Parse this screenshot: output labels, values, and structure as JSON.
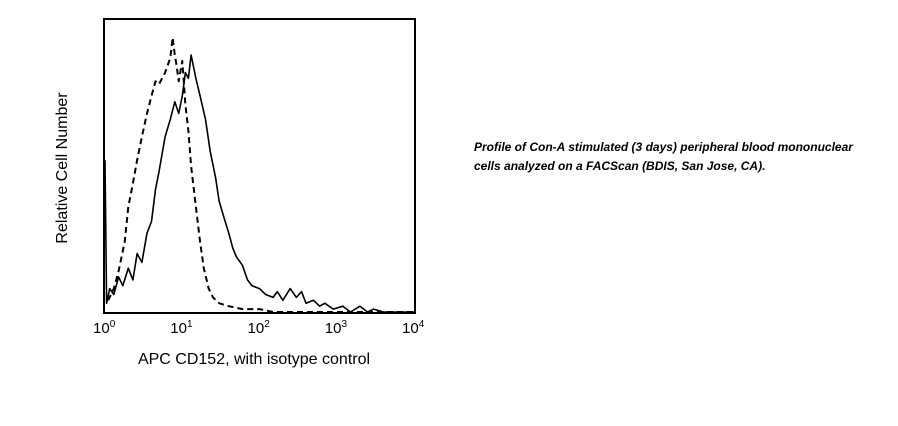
{
  "chart_data": {
    "type": "line",
    "xscale": "log",
    "xlim": [
      1,
      10000
    ],
    "ylim": [
      0,
      100
    ],
    "ylabel": "Relative Cell Number",
    "xlabel": "APC CD152, with isotype control",
    "xticks": [
      {
        "base": "10",
        "exp": "0",
        "value": 1
      },
      {
        "base": "10",
        "exp": "1",
        "value": 10
      },
      {
        "base": "10",
        "exp": "2",
        "value": 100
      },
      {
        "base": "10",
        "exp": "3",
        "value": 1000
      },
      {
        "base": "10",
        "exp": "4",
        "value": 10000
      }
    ],
    "series": [
      {
        "style": "solid",
        "color": "#000000",
        "points": [
          [
            1.0,
            52
          ],
          [
            1.05,
            3
          ],
          [
            1.15,
            8
          ],
          [
            1.3,
            6
          ],
          [
            1.5,
            12
          ],
          [
            1.7,
            9
          ],
          [
            2.0,
            15
          ],
          [
            2.3,
            11
          ],
          [
            2.6,
            20
          ],
          [
            3.0,
            17
          ],
          [
            3.5,
            27
          ],
          [
            4.0,
            31
          ],
          [
            4.5,
            42
          ],
          [
            5.0,
            48
          ],
          [
            6.0,
            60
          ],
          [
            7.0,
            66
          ],
          [
            8.0,
            72
          ],
          [
            9.0,
            68
          ],
          [
            10.0,
            74
          ],
          [
            11.0,
            82
          ],
          [
            12.0,
            80
          ],
          [
            13.0,
            88
          ],
          [
            15.0,
            80
          ],
          [
            17.0,
            74
          ],
          [
            20.0,
            66
          ],
          [
            23.0,
            55
          ],
          [
            27.0,
            46
          ],
          [
            30.0,
            38
          ],
          [
            35.0,
            32
          ],
          [
            40.0,
            27
          ],
          [
            45.0,
            22
          ],
          [
            50.0,
            19
          ],
          [
            60.0,
            16
          ],
          [
            70.0,
            11
          ],
          [
            80.0,
            9
          ],
          [
            100.0,
            8
          ],
          [
            120.0,
            6
          ],
          [
            150.0,
            5
          ],
          [
            170.0,
            7
          ],
          [
            200.0,
            4
          ],
          [
            250.0,
            8
          ],
          [
            300.0,
            5
          ],
          [
            350.0,
            7
          ],
          [
            400.0,
            3
          ],
          [
            500.0,
            4
          ],
          [
            600.0,
            2
          ],
          [
            700.0,
            3
          ],
          [
            900.0,
            1
          ],
          [
            1200.0,
            2
          ],
          [
            1500.0,
            0
          ],
          [
            2000.0,
            2
          ],
          [
            2500.0,
            0
          ],
          [
            3000.0,
            1
          ],
          [
            4000.0,
            0
          ],
          [
            10000.0,
            0
          ]
        ]
      },
      {
        "style": "dashed",
        "color": "#000000",
        "points": [
          [
            1.1,
            4
          ],
          [
            1.3,
            8
          ],
          [
            1.5,
            14
          ],
          [
            1.8,
            24
          ],
          [
            2.0,
            36
          ],
          [
            2.3,
            44
          ],
          [
            2.6,
            52
          ],
          [
            3.0,
            60
          ],
          [
            3.5,
            68
          ],
          [
            4.0,
            74
          ],
          [
            4.5,
            79
          ],
          [
            5.0,
            78
          ],
          [
            6.0,
            82
          ],
          [
            7.0,
            87
          ],
          [
            7.5,
            94
          ],
          [
            8.0,
            88
          ],
          [
            8.5,
            84
          ],
          [
            9.0,
            79
          ],
          [
            10.0,
            86
          ],
          [
            11.0,
            71
          ],
          [
            12.0,
            62
          ],
          [
            13.0,
            50
          ],
          [
            15.0,
            36
          ],
          [
            17.0,
            24
          ],
          [
            19.0,
            15
          ],
          [
            22.0,
            8
          ],
          [
            25.0,
            5
          ],
          [
            30.0,
            3
          ],
          [
            40.0,
            2
          ],
          [
            60.0,
            1
          ],
          [
            100.0,
            1
          ],
          [
            150.0,
            0
          ],
          [
            300.0,
            0
          ],
          [
            1000.0,
            0
          ],
          [
            10000.0,
            0
          ]
        ]
      }
    ]
  },
  "caption": "Profile of Con-A stimulated (3 days) peripheral blood mononuclear cells analyzed on a FACScan (BDIS, San Jose, CA)."
}
